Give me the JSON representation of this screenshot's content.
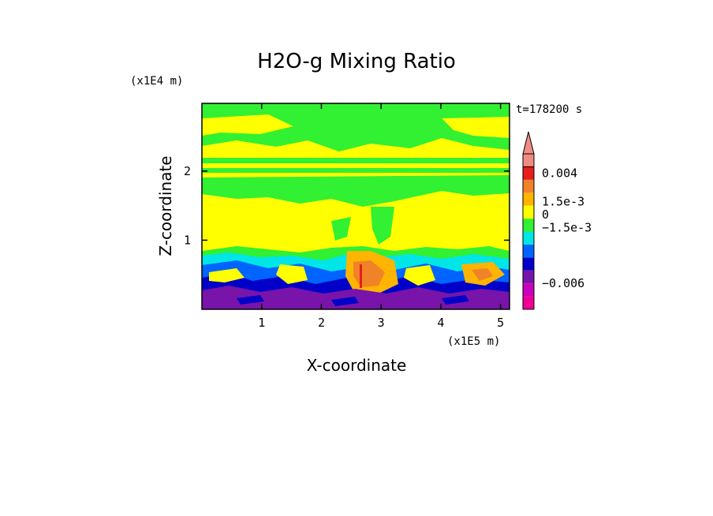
{
  "chart_data": {
    "type": "heatmap",
    "title": "H2O-g Mixing Ratio",
    "time_label": "t=178200 s",
    "xlabel": "X-coordinate",
    "ylabel": "Z-coordinate",
    "x_unit": "(x1E5 m)",
    "y_unit": "(x1E4 m)",
    "xlim": [
      0,
      5.15
    ],
    "ylim": [
      0,
      2.98
    ],
    "x_ticks": [
      1,
      2,
      3,
      4,
      5
    ],
    "y_ticks": [
      1,
      2
    ],
    "x_tick_labels": [
      "1",
      "2",
      "3",
      "4",
      "5"
    ],
    "y_tick_labels": [
      "1",
      "2"
    ],
    "colorbar": {
      "levels": [
        {
          "color": "#f00096"
        },
        {
          "color": "#c800be"
        },
        {
          "color": "#7814aa"
        },
        {
          "color": "#0000c8"
        },
        {
          "color": "#0064ff"
        },
        {
          "color": "#00e6e6"
        },
        {
          "color": "#32f032"
        },
        {
          "color": "#ffff00"
        },
        {
          "color": "#ffb400"
        },
        {
          "color": "#f08228"
        },
        {
          "color": "#e61e1e"
        },
        {
          "color": "#f08c82"
        }
      ],
      "labels": [
        {
          "text": "0.004",
          "at": 10.5
        },
        {
          "text": "1.5e-3",
          "at": 8.3
        },
        {
          "text": "0",
          "at": 7.3
        },
        {
          "text": "−1.5e-3",
          "at": 6.3
        },
        {
          "text": "−0.006",
          "at": 2.0
        }
      ]
    },
    "regions": [
      {
        "name": "upper-layer",
        "z": [
          1.05,
          2.98
        ],
        "dominant": "#ffff00",
        "secondary": "#32f032"
      },
      {
        "name": "green-band-upper",
        "z": [
          2.45,
          2.98
        ],
        "dominant": "#32f032"
      },
      {
        "name": "green-band-mid",
        "z": [
          1.55,
          2.0
        ],
        "dominant": "#32f032"
      },
      {
        "name": "boundary-layer",
        "z": [
          0.15,
          0.85
        ],
        "dominant": "#00e6e6",
        "secondary": "#0000c8"
      },
      {
        "name": "surface-layer",
        "z": [
          0.0,
          0.3
        ],
        "dominant": "#7814aa"
      }
    ]
  }
}
